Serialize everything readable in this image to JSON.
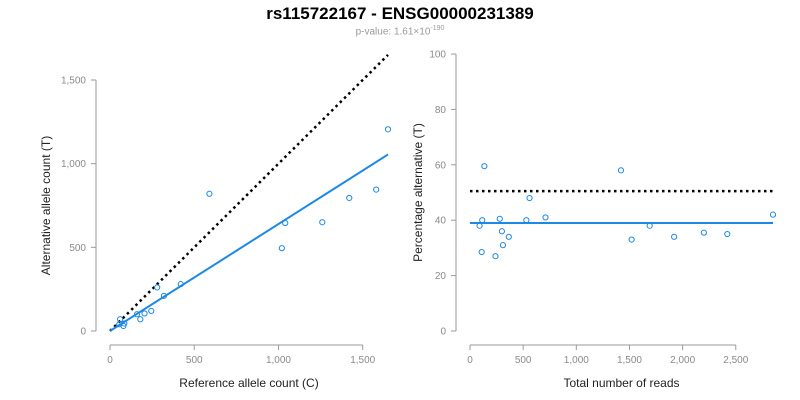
{
  "title": "rs115722167 - ENSG00000231389",
  "subtitle": {
    "prefix": "p-value: 1.61×10",
    "exponent": "-190"
  },
  "colors": {
    "points": "#1e88e5",
    "fit": "#1e88e5",
    "reference": "#000000",
    "axis": "#9a9a9a"
  },
  "chart_data": [
    {
      "type": "scatter",
      "xlabel": "Reference allele count (C)",
      "ylabel": "Alternative allele count (T)",
      "xlim": [
        0,
        1650
      ],
      "ylim": [
        0,
        1500
      ],
      "xticks": [
        0,
        500,
        1000,
        1500
      ],
      "xtick_labels": [
        "0",
        "500",
        "1,000",
        "1,500"
      ],
      "yticks": [
        0,
        500,
        1000,
        1500
      ],
      "ytick_labels": [
        "0",
        "500",
        "1,000",
        "1,500"
      ],
      "points": [
        {
          "x": 60,
          "y": 70
        },
        {
          "x": 55,
          "y": 40
        },
        {
          "x": 80,
          "y": 30
        },
        {
          "x": 85,
          "y": 45
        },
        {
          "x": 160,
          "y": 100
        },
        {
          "x": 180,
          "y": 70
        },
        {
          "x": 205,
          "y": 105
        },
        {
          "x": 245,
          "y": 120
        },
        {
          "x": 280,
          "y": 260
        },
        {
          "x": 320,
          "y": 210
        },
        {
          "x": 420,
          "y": 280
        },
        {
          "x": 590,
          "y": 820
        },
        {
          "x": 1020,
          "y": 495
        },
        {
          "x": 1040,
          "y": 645
        },
        {
          "x": 1260,
          "y": 650
        },
        {
          "x": 1420,
          "y": 795
        },
        {
          "x": 1580,
          "y": 845
        },
        {
          "x": 1650,
          "y": 1205
        }
      ],
      "lines": [
        {
          "style": "dotted",
          "color": "#000000",
          "x": [
            0,
            1650
          ],
          "y": [
            0,
            1650
          ]
        },
        {
          "style": "solid",
          "color": "#1e88e5",
          "x": [
            0,
            1650
          ],
          "y": [
            0,
            1055
          ]
        }
      ],
      "grid": false
    },
    {
      "type": "scatter",
      "xlabel": "Total number of reads",
      "ylabel": "Percentage alternative (T)",
      "xlim": [
        0,
        2850
      ],
      "ylim": [
        0,
        100
      ],
      "xticks": [
        0,
        500,
        1000,
        1500,
        2000,
        2500
      ],
      "xtick_labels": [
        "0",
        "500",
        "1,000",
        "1,500",
        "2,000",
        "2,500"
      ],
      "yticks": [
        0,
        20,
        40,
        60,
        80,
        100
      ],
      "ytick_labels": [
        "0",
        "20",
        "40",
        "60",
        "80",
        "100"
      ],
      "points": [
        {
          "x": 90,
          "y": 38
        },
        {
          "x": 110,
          "y": 28.5
        },
        {
          "x": 115,
          "y": 40
        },
        {
          "x": 135,
          "y": 59.5
        },
        {
          "x": 240,
          "y": 27
        },
        {
          "x": 280,
          "y": 40.5
        },
        {
          "x": 300,
          "y": 36
        },
        {
          "x": 310,
          "y": 31
        },
        {
          "x": 365,
          "y": 34
        },
        {
          "x": 530,
          "y": 40
        },
        {
          "x": 560,
          "y": 48
        },
        {
          "x": 710,
          "y": 41
        },
        {
          "x": 1420,
          "y": 58
        },
        {
          "x": 1520,
          "y": 33
        },
        {
          "x": 1690,
          "y": 38
        },
        {
          "x": 1920,
          "y": 34
        },
        {
          "x": 2200,
          "y": 35.5
        },
        {
          "x": 2420,
          "y": 35
        },
        {
          "x": 2850,
          "y": 42
        }
      ],
      "lines": [
        {
          "style": "dotted",
          "color": "#000000",
          "x": [
            0,
            2850
          ],
          "y": [
            50.5,
            50.5
          ]
        },
        {
          "style": "solid",
          "color": "#1e88e5",
          "x": [
            0,
            2850
          ],
          "y": [
            39,
            39
          ]
        }
      ],
      "grid": false
    }
  ]
}
